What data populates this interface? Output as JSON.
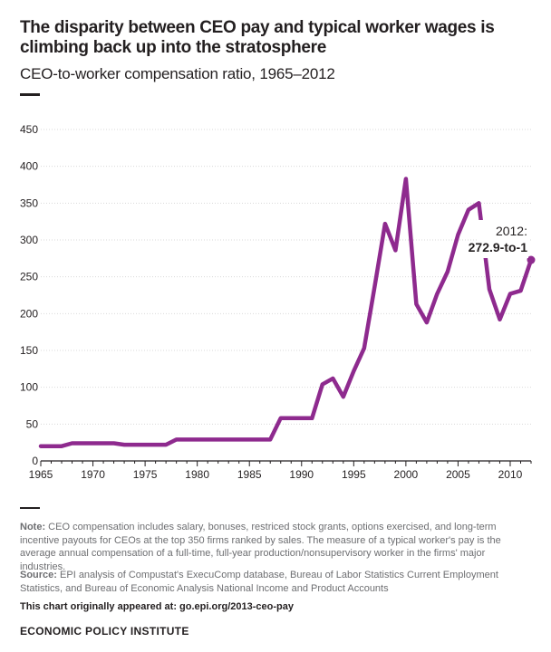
{
  "title": "The disparity between CEO pay and typical worker wages is climbing back up into the stratosphere",
  "subtitle": "CEO-to-worker compensation ratio, 1965–2012",
  "note_label": "Note:",
  "note_text": "CEO compensation includes salary, bonuses, restriced stock grants, options exercised, and long-term incentive payouts for CEOs at the top 350 firms ranked by sales. The measure of a typical worker's pay is the average annual compensation of a full-time, full-year production/nonsupervisory worker in the firms' major industries.",
  "source_label": "Source:",
  "source_text": "EPI analysis of Compustat's ExecuComp database, Bureau of Labor Statistics Current Employment Statistics, and Bureau of Economic Analysis National Income and Product Accounts",
  "link_text": "This chart originally appeared at: go.epi.org/2013-ceo-pay",
  "org": "ECONOMIC POLICY INSTITUTE",
  "colors": {
    "line": "#8e2a8e",
    "text": "#231f20",
    "grid": "#d9d9d9",
    "muted": "#6d6e71"
  },
  "chart_data": {
    "type": "line",
    "x": [
      1965,
      1966,
      1967,
      1968,
      1969,
      1970,
      1971,
      1972,
      1973,
      1974,
      1975,
      1976,
      1977,
      1978,
      1979,
      1980,
      1981,
      1982,
      1983,
      1984,
      1985,
      1986,
      1987,
      1988,
      1989,
      1990,
      1991,
      1992,
      1993,
      1994,
      1995,
      1996,
      1997,
      1998,
      1999,
      2000,
      2001,
      2002,
      2003,
      2004,
      2005,
      2006,
      2007,
      2008,
      2009,
      2010,
      2011,
      2012
    ],
    "y": [
      20,
      20,
      20,
      24,
      24,
      24,
      24,
      24,
      22,
      22,
      22,
      22,
      22,
      29,
      29,
      29,
      29,
      29,
      29,
      29,
      29,
      29,
      29,
      58,
      58,
      58,
      58,
      104,
      112,
      87,
      122,
      153,
      236,
      322,
      286,
      383,
      213,
      188,
      227,
      257,
      307,
      341,
      350,
      233,
      192,
      227,
      231,
      272.9
    ],
    "xlim": [
      1965,
      2012
    ],
    "ylim": [
      0,
      450
    ],
    "yticks": [
      "0",
      "50",
      "100",
      "150",
      "200",
      "250",
      "300",
      "350",
      "400",
      "450"
    ],
    "xticks": [
      "1965",
      "1970",
      "1975",
      "1980",
      "1985",
      "1990",
      "1995",
      "2000",
      "2005",
      "2010"
    ],
    "grid": "horizontal",
    "annotation": {
      "line1": "2012:",
      "line2": "272.9-to-1"
    }
  }
}
